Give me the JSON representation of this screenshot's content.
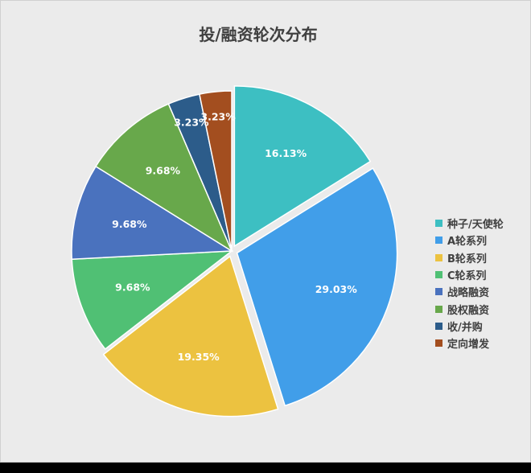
{
  "chart_data": {
    "type": "pie",
    "title": "投/融资轮次分布",
    "legend_position": "right",
    "categories": [
      "种子/天使轮",
      "A轮系列",
      "B轮系列",
      "C轮系列",
      "战略融资",
      "股权融资",
      "收/并购",
      "定向增发"
    ],
    "values": [
      16.13,
      29.03,
      19.35,
      9.68,
      9.68,
      9.68,
      3.23,
      3.23
    ],
    "labels": [
      "16.13%",
      "29.03%",
      "19.35%",
      "9.68%",
      "9.68%",
      "9.68%",
      "3.23%",
      "3.23%"
    ],
    "colors": [
      "#3dbfc2",
      "#419ee9",
      "#ecc240",
      "#50c074",
      "#4a72be",
      "#68a84b",
      "#2c5c8a",
      "#a34e1f"
    ],
    "exploded": [
      true,
      true,
      true,
      false,
      false,
      false,
      false,
      false
    ]
  }
}
